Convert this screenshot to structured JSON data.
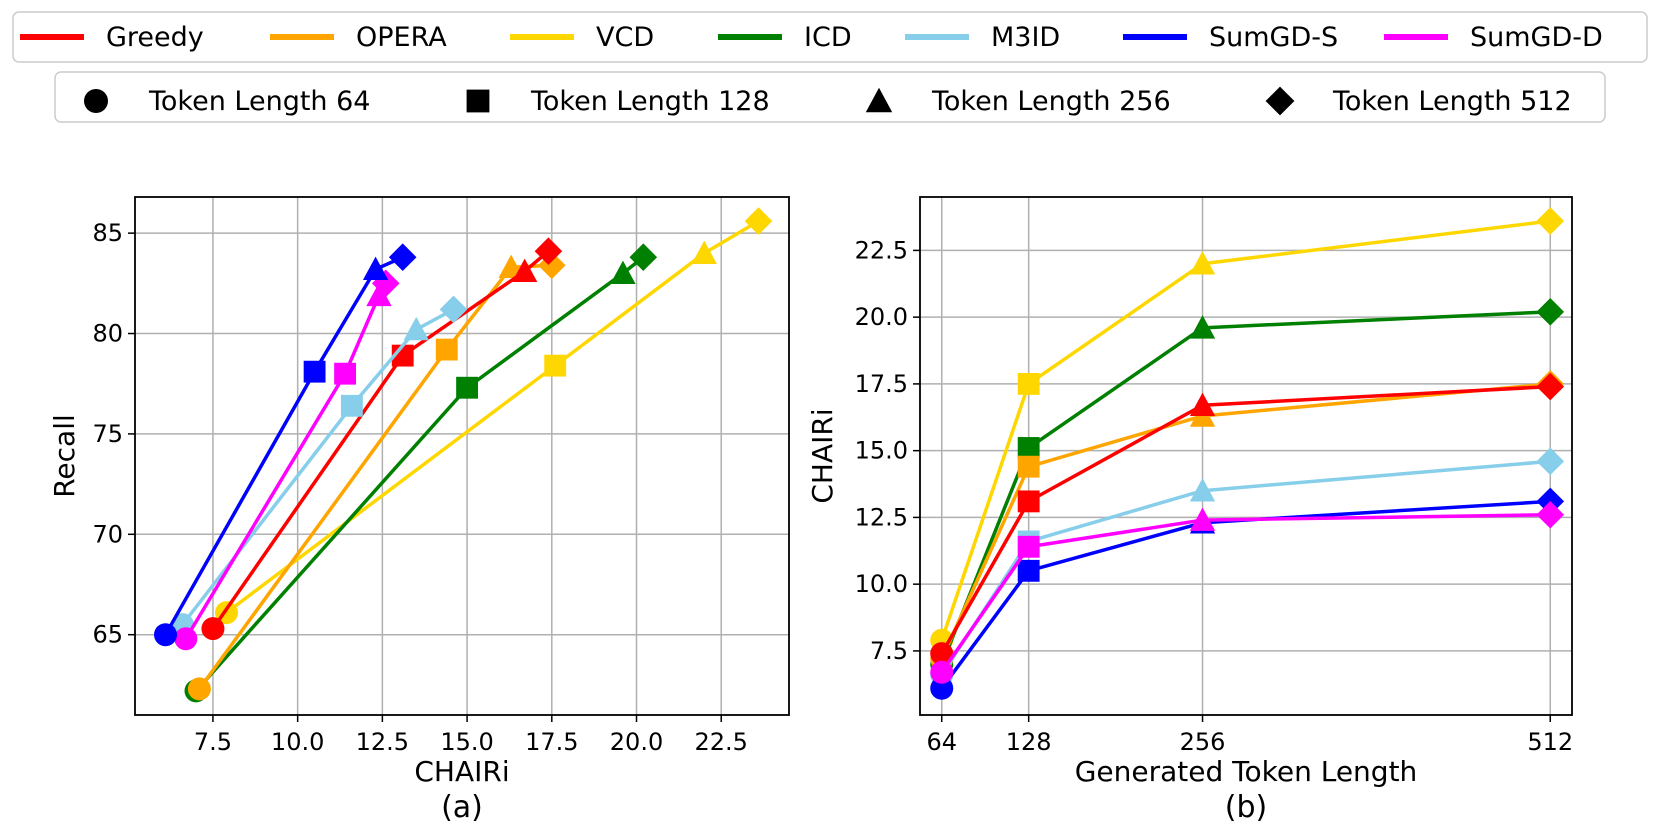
{
  "legend_methods": [
    {
      "label": "Greedy",
      "color": "#ff0000"
    },
    {
      "label": "OPERA",
      "color": "#ffa500"
    },
    {
      "label": "VCD",
      "color": "#ffd700"
    },
    {
      "label": "ICD",
      "color": "#008000"
    },
    {
      "label": "M3ID",
      "color": "#87ceeb"
    },
    {
      "label": "SumGD-S",
      "color": "#0000ff"
    },
    {
      "label": "SumGD-D",
      "color": "#ff00ff"
    }
  ],
  "legend_markers": [
    {
      "label": "Token Length 64",
      "marker": "circle"
    },
    {
      "label": "Token Length 128",
      "marker": "square"
    },
    {
      "label": "Token Length 256",
      "marker": "triangle"
    },
    {
      "label": "Token Length 512",
      "marker": "diamond"
    }
  ],
  "chart_data": [
    {
      "type": "line",
      "subtitle": "(a)",
      "xlabel": "CHAIRi",
      "ylabel": "Recall",
      "xlim": [
        5.2,
        24.5
      ],
      "ylim": [
        61.0,
        86.8
      ],
      "xticks": [
        7.5,
        10.0,
        12.5,
        15.0,
        17.5,
        20.0,
        22.5
      ],
      "xtick_labels": [
        "7.5",
        "10.0",
        "12.5",
        "15.0",
        "17.5",
        "20.0",
        "22.5"
      ],
      "yticks": [
        65,
        70,
        75,
        80,
        85
      ],
      "ytick_labels": [
        "65",
        "70",
        "75",
        "80",
        "85"
      ],
      "grid": true,
      "markers_by_point": [
        "circle",
        "square",
        "triangle",
        "diamond"
      ],
      "series": [
        {
          "name": "VCD",
          "x": [
            7.9,
            17.6,
            22.0,
            23.6
          ],
          "y": [
            66.1,
            78.4,
            84.0,
            85.6
          ]
        },
        {
          "name": "ICD",
          "x": [
            7.0,
            15.0,
            19.6,
            20.2
          ],
          "y": [
            62.2,
            77.3,
            83.0,
            83.8
          ]
        },
        {
          "name": "OPERA",
          "x": [
            7.1,
            14.4,
            16.3,
            17.5
          ],
          "y": [
            62.3,
            79.2,
            83.3,
            83.4
          ]
        },
        {
          "name": "Greedy",
          "x": [
            7.5,
            13.1,
            16.7,
            17.4
          ],
          "y": [
            65.3,
            78.9,
            83.1,
            84.1
          ]
        },
        {
          "name": "M3ID",
          "x": [
            6.6,
            11.6,
            13.5,
            14.6
          ],
          "y": [
            65.5,
            76.4,
            80.2,
            81.2
          ]
        },
        {
          "name": "SumGD-D",
          "x": [
            6.7,
            11.4,
            12.4,
            12.6
          ],
          "y": [
            64.8,
            78.0,
            81.9,
            82.5
          ]
        },
        {
          "name": "SumGD-S",
          "x": [
            6.1,
            10.5,
            12.3,
            13.1
          ],
          "y": [
            65.0,
            78.1,
            83.2,
            83.8
          ]
        }
      ]
    },
    {
      "type": "line",
      "subtitle": "(b)",
      "xlabel": "Generated Token Length",
      "ylabel": "CHAIRi",
      "xlim": [
        48,
        528
      ],
      "ylim": [
        5.1,
        24.5
      ],
      "xticks": [
        64,
        128,
        256,
        512
      ],
      "xtick_labels": [
        "64",
        "128",
        "256",
        "512"
      ],
      "yticks": [
        7.5,
        10.0,
        12.5,
        15.0,
        17.5,
        20.0,
        22.5
      ],
      "ytick_labels": [
        "7.5",
        "10.0",
        "12.5",
        "15.0",
        "17.5",
        "20.0",
        "22.5"
      ],
      "grid": true,
      "markers_by_point": [
        "circle",
        "square",
        "triangle",
        "diamond"
      ],
      "series": [
        {
          "name": "VCD",
          "x": [
            64,
            128,
            256,
            512
          ],
          "y": [
            7.9,
            17.5,
            22.0,
            23.6
          ]
        },
        {
          "name": "ICD",
          "x": [
            64,
            128,
            256,
            512
          ],
          "y": [
            7.0,
            15.1,
            19.6,
            20.2
          ]
        },
        {
          "name": "OPERA",
          "x": [
            64,
            128,
            256,
            512
          ],
          "y": [
            7.2,
            14.4,
            16.3,
            17.5
          ]
        },
        {
          "name": "Greedy",
          "x": [
            64,
            128,
            256,
            512
          ],
          "y": [
            7.4,
            13.1,
            16.7,
            17.4
          ]
        },
        {
          "name": "M3ID",
          "x": [
            64,
            128,
            256,
            512
          ],
          "y": [
            6.6,
            11.6,
            13.5,
            14.6
          ]
        },
        {
          "name": "SumGD-S",
          "x": [
            64,
            128,
            256,
            512
          ],
          "y": [
            6.1,
            10.5,
            12.3,
            13.1
          ]
        },
        {
          "name": "SumGD-D",
          "x": [
            64,
            128,
            256,
            512
          ],
          "y": [
            6.7,
            11.4,
            12.4,
            12.6
          ]
        }
      ]
    }
  ]
}
